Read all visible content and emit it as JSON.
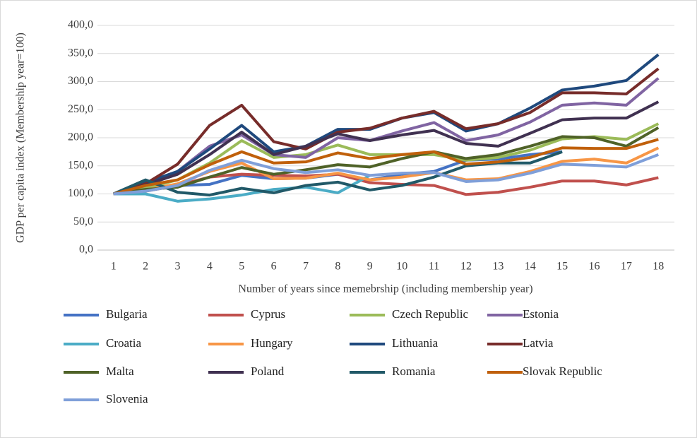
{
  "chart_data": {
    "type": "line",
    "y_label": "GDP per capita index (Membership year=100)",
    "x_label": "Number of years since memebrship (including membership year)",
    "x": [
      1,
      2,
      3,
      4,
      5,
      6,
      7,
      8,
      9,
      10,
      11,
      12,
      13,
      14,
      15,
      16,
      17,
      18
    ],
    "ylim": [
      0,
      400
    ],
    "yticks": [
      {
        "value": 0,
        "label": "0,0"
      },
      {
        "value": 50,
        "label": "50,0"
      },
      {
        "value": 100,
        "label": "100,0"
      },
      {
        "value": 150,
        "label": "150,0"
      },
      {
        "value": 200,
        "label": "200,0"
      },
      {
        "value": 250,
        "label": "250,0"
      },
      {
        "value": 300,
        "label": "300,0"
      },
      {
        "value": 350,
        "label": "350,0"
      },
      {
        "value": 400,
        "label": "400,0"
      }
    ],
    "grid": true,
    "legend": "bottom",
    "series": [
      {
        "name": "Bulgaria",
        "color": "#4472c4",
        "values": [
          100,
          105,
          115,
          117,
          133,
          127,
          128,
          135,
          125,
          135,
          140,
          160,
          162,
          170,
          175,
          null,
          null,
          null
        ]
      },
      {
        "name": "Cyprus",
        "color": "#c0504d",
        "values": [
          100,
          105,
          115,
          130,
          135,
          133,
          132,
          135,
          120,
          117,
          115,
          99,
          103,
          112,
          123,
          123,
          116,
          129
        ]
      },
      {
        "name": "Czech Republic",
        "color": "#9bbb59",
        "values": [
          100,
          110,
          125,
          155,
          195,
          165,
          170,
          187,
          170,
          170,
          170,
          160,
          165,
          178,
          198,
          202,
          197,
          225
        ]
      },
      {
        "name": "Estonia",
        "color": "#8064a2",
        "values": [
          100,
          115,
          140,
          185,
          205,
          170,
          165,
          200,
          195,
          212,
          227,
          195,
          205,
          228,
          258,
          262,
          258,
          306
        ]
      },
      {
        "name": "Croatia",
        "color": "#4bacc6",
        "values": [
          100,
          100,
          87,
          91,
          98,
          108,
          112,
          102,
          133,
          null,
          null,
          null,
          null,
          null,
          null,
          null,
          null,
          null
        ]
      },
      {
        "name": "Hungary",
        "color": "#f79646",
        "values": [
          100,
          107,
          118,
          140,
          155,
          127,
          128,
          137,
          125,
          130,
          138,
          125,
          127,
          140,
          158,
          162,
          155,
          182
        ]
      },
      {
        "name": "Lithuania",
        "color": "#1f497d",
        "values": [
          100,
          120,
          140,
          180,
          222,
          175,
          185,
          215,
          215,
          235,
          245,
          212,
          225,
          253,
          285,
          292,
          302,
          348
        ]
      },
      {
        "name": "Latvia",
        "color": "#772c2a",
        "values": [
          100,
          118,
          153,
          222,
          258,
          193,
          180,
          210,
          217,
          235,
          247,
          216,
          225,
          245,
          280,
          280,
          278,
          323
        ]
      },
      {
        "name": "Malta",
        "color": "#4f6228",
        "values": [
          100,
          108,
          112,
          130,
          147,
          135,
          143,
          152,
          148,
          163,
          175,
          163,
          170,
          185,
          202,
          200,
          185,
          218
        ]
      },
      {
        "name": "Poland",
        "color": "#403151",
        "values": [
          100,
          116,
          135,
          170,
          210,
          170,
          185,
          207,
          195,
          205,
          213,
          190,
          185,
          208,
          232,
          235,
          235,
          264
        ]
      },
      {
        "name": "Romania",
        "color": "#215968",
        "values": [
          100,
          125,
          103,
          98,
          110,
          102,
          115,
          121,
          107,
          115,
          130,
          150,
          155,
          155,
          175,
          null,
          null,
          null
        ]
      },
      {
        "name": "Slovak Republic",
        "color": "#c0600b",
        "values": [
          100,
          115,
          125,
          152,
          175,
          155,
          157,
          173,
          163,
          170,
          175,
          153,
          157,
          165,
          182,
          181,
          181,
          197
        ]
      },
      {
        "name": "Slovenia",
        "color": "#7f9fd9",
        "values": [
          100,
          105,
          115,
          142,
          160,
          145,
          138,
          143,
          133,
          137,
          138,
          122,
          125,
          137,
          153,
          151,
          148,
          170
        ]
      }
    ]
  }
}
